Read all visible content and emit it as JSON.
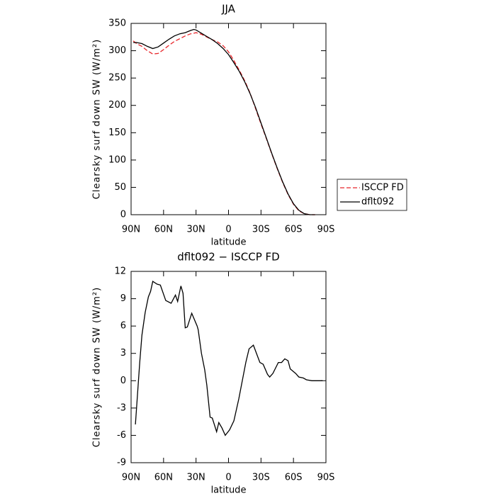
{
  "chart_data": [
    {
      "type": "line",
      "title": "JJA",
      "xlabel": "latitude",
      "ylabel": "Clearsky surf down SW (W/m²)",
      "x": [
        88,
        85,
        80,
        75,
        70,
        65,
        60,
        55,
        50,
        45,
        40,
        35,
        32,
        30,
        25,
        20,
        15,
        10,
        5,
        0,
        -5,
        -10,
        -15,
        -20,
        -25,
        -30,
        -35,
        -40,
        -45,
        -50,
        -55,
        -60,
        -65,
        -70,
        -75,
        -80
      ],
      "series": [
        {
          "name": "ISCCP FD",
          "color": "#e8262b",
          "dashed": true,
          "values": [
            318,
            313,
            308,
            300,
            294,
            295,
            302,
            310,
            317,
            322,
            327,
            331,
            332,
            333,
            330,
            325,
            320,
            316,
            309,
            298,
            282,
            264,
            245,
            222,
            194,
            166,
            139,
            111,
            84,
            59,
            37,
            19,
            7,
            2,
            0,
            0
          ]
        },
        {
          "name": "dflt092",
          "color": "#000000",
          "dashed": false,
          "values": [
            315,
            315,
            313,
            308,
            304,
            307,
            314,
            321,
            327,
            331,
            333,
            337,
            339,
            338,
            332,
            326,
            320,
            313,
            304,
            293,
            278,
            262,
            243,
            221,
            196,
            168,
            140,
            112,
            85,
            60,
            38,
            20,
            8,
            2,
            0,
            0
          ]
        }
      ],
      "xlim": [
        90,
        -90
      ],
      "ylim": [
        0,
        350
      ],
      "xticks": [
        {
          "value": 90,
          "label": "90N"
        },
        {
          "value": 60,
          "label": "60N"
        },
        {
          "value": 30,
          "label": "30N"
        },
        0,
        {
          "value": -30,
          "label": "30S"
        },
        {
          "value": -60,
          "label": "60S"
        },
        {
          "value": -90,
          "label": "90S"
        }
      ],
      "yticks": [
        0,
        50,
        100,
        150,
        200,
        250,
        300,
        350
      ],
      "legend": "right"
    },
    {
      "type": "line",
      "title": "dflt092 − ISCCP FD",
      "xlabel": "latitude",
      "ylabel": "Clearsky surf down SW (W/m²)",
      "x": [
        86,
        82,
        80,
        77,
        74,
        72,
        70,
        66,
        63,
        58,
        53,
        49,
        47,
        44,
        42,
        40,
        38,
        34,
        29,
        28,
        25,
        22,
        20,
        17,
        15,
        11,
        9,
        6,
        3,
        -1,
        -5,
        -9.5,
        -16,
        -19,
        -23,
        -29,
        -32,
        -36,
        -38,
        -41,
        -46,
        -49,
        -52,
        -55,
        -57,
        -59,
        -62,
        -65,
        -69,
        -72,
        -77,
        -87
      ],
      "series": [
        {
          "name": "dflt092 − ISCCP FD",
          "color": "#000000",
          "dashed": false,
          "values": [
            -4.8,
            2,
            5,
            7.5,
            9.2,
            9.8,
            10.9,
            10.6,
            10.5,
            8.8,
            8.5,
            9.4,
            8.7,
            10.4,
            9.6,
            5.8,
            5.9,
            7.4,
            6,
            5.6,
            3,
            1.2,
            -0.5,
            -4,
            -4.1,
            -5.6,
            -4.6,
            -5.2,
            -6,
            -5.4,
            -4.4,
            -2,
            2,
            3.5,
            3.9,
            2,
            1.8,
            0.7,
            0.4,
            0.8,
            2,
            2,
            2.4,
            2.2,
            1.3,
            1.1,
            0.8,
            0.4,
            0.3,
            0.1,
            0,
            0
          ]
        }
      ],
      "xlim": [
        90,
        -90
      ],
      "ylim": [
        -9,
        12
      ],
      "xticks": [
        {
          "value": 90,
          "label": "90N"
        },
        {
          "value": 60,
          "label": "60N"
        },
        {
          "value": 30,
          "label": "30N"
        },
        0,
        {
          "value": -30,
          "label": "30S"
        },
        {
          "value": -60,
          "label": "60S"
        },
        {
          "value": -90,
          "label": "90S"
        }
      ],
      "yticks": [
        -9,
        -6,
        -3,
        0,
        3,
        6,
        9,
        12
      ]
    }
  ]
}
